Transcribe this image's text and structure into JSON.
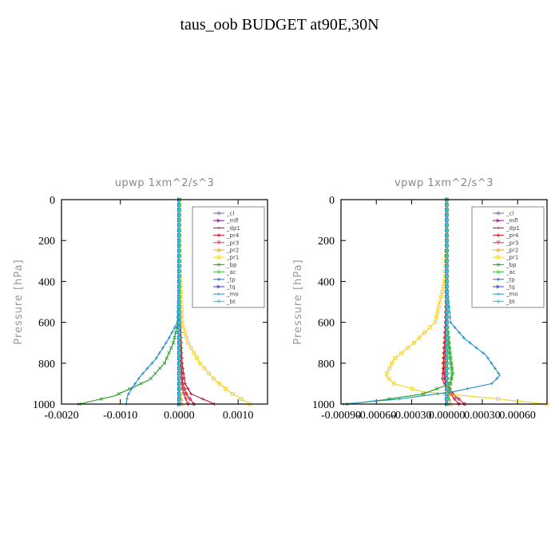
{
  "title": "taus_oob  BUDGET at90E,30N",
  "chart_data": [
    {
      "type": "line",
      "title": "upwp   1xm^2/s^3",
      "ylabel": "Pressure [hPa]",
      "xlim": [
        -0.002,
        0.0015
      ],
      "ylim": [
        0,
        1000
      ],
      "y_inverted": true,
      "xticks": [
        "-0.0020",
        "-0.0010",
        "0.0000",
        "0.0010"
      ],
      "xtick_values": [
        -0.002,
        -0.001,
        0.0,
        0.001
      ],
      "yticks": [
        "0",
        "200",
        "400",
        "600",
        "800",
        "1000"
      ],
      "ytick_values": [
        0,
        200,
        400,
        600,
        800,
        1000
      ],
      "legend_position": "top-right",
      "series": [
        {
          "name": "_cl",
          "color": "#7f5f9f",
          "marker": "o",
          "x": [
            0,
            0,
            0,
            0,
            0,
            0
          ],
          "y": [
            0,
            200,
            400,
            600,
            800,
            1000
          ]
        },
        {
          "name": "_mfl",
          "color": "#8b1a8b",
          "marker": ">",
          "x": [
            0,
            0,
            0,
            0,
            0,
            0,
            0,
            0
          ],
          "y": [
            0,
            200,
            400,
            600,
            800,
            900,
            950,
            1000
          ]
        },
        {
          "name": "_dp1",
          "color": "#b0103a",
          "marker": "+",
          "x": [
            0,
            0,
            0,
            2e-05,
            5e-05,
            0.0001,
            0.0002,
            0.0006
          ],
          "y": [
            0,
            200,
            400,
            600,
            800,
            900,
            950,
            1000
          ]
        },
        {
          "name": "_pr4",
          "color": "#d0182a",
          "marker": "d",
          "x": [
            0,
            0,
            0,
            1e-05,
            3e-05,
            6e-05,
            0.00012,
            0.00025
          ],
          "y": [
            0,
            200,
            400,
            600,
            800,
            900,
            950,
            1000
          ]
        },
        {
          "name": "_pr3",
          "color": "#e03050",
          "marker": "v",
          "x": [
            0,
            0,
            0,
            0,
            2e-05,
            4e-05,
            8e-05,
            0.00015
          ],
          "y": [
            0,
            200,
            400,
            600,
            800,
            900,
            950,
            1000
          ]
        },
        {
          "name": "_pr2",
          "color": "#f0a020",
          "marker": "^",
          "x": [
            0,
            0,
            0,
            0,
            0,
            1e-05,
            2e-05,
            4e-05
          ],
          "y": [
            0,
            200,
            400,
            600,
            800,
            900,
            950,
            1000
          ]
        },
        {
          "name": "_pr1",
          "color": "#f0d020",
          "marker": "s",
          "x": [
            0,
            0,
            2e-05,
            5e-05,
            0.00015,
            0.00035,
            0.0006,
            0.00085,
            0.0012
          ],
          "y": [
            0,
            200,
            400,
            600,
            700,
            800,
            880,
            940,
            1000
          ]
        },
        {
          "name": "_bp",
          "color": "#20a020",
          "marker": "x",
          "x": [
            0,
            0,
            0,
            -2e-05,
            -0.0001,
            -0.00025,
            -0.0005,
            -0.0011,
            -0.0017
          ],
          "y": [
            0,
            200,
            400,
            600,
            700,
            800,
            880,
            960,
            1000
          ]
        },
        {
          "name": "_ac",
          "color": "#40c040",
          "marker": "o",
          "x": [
            0,
            0,
            0,
            0,
            0,
            0,
            0,
            0
          ],
          "y": [
            0,
            200,
            400,
            600,
            800,
            900,
            950,
            1000
          ]
        },
        {
          "name": "_tp",
          "color": "#3070d0",
          "marker": "*",
          "x": [
            0,
            0,
            0,
            0,
            0,
            0,
            0,
            0
          ],
          "y": [
            0,
            200,
            400,
            600,
            800,
            900,
            950,
            1000
          ]
        },
        {
          "name": "_tq",
          "color": "#4040c0",
          "marker": ">",
          "x": [
            0,
            0,
            0,
            0,
            0,
            0,
            0,
            0
          ],
          "y": [
            0,
            200,
            400,
            600,
            800,
            900,
            950,
            1000
          ]
        },
        {
          "name": "_mo",
          "color": "#2090c0",
          "marker": "+",
          "x": [
            0,
            0,
            0,
            -3e-05,
            -0.00018,
            -0.0004,
            -0.00065,
            -0.0008,
            -0.00088,
            -0.0009
          ],
          "y": [
            0,
            200,
            400,
            600,
            680,
            780,
            860,
            920,
            960,
            1000
          ]
        },
        {
          "name": "_bt",
          "color": "#20d0d0",
          "marker": "D",
          "x": [
            0,
            0,
            0,
            0,
            0,
            0
          ],
          "y": [
            0,
            200,
            400,
            600,
            800,
            1000
          ]
        }
      ]
    },
    {
      "type": "line",
      "title": "vpwp   1xm^2/s^3",
      "ylabel": "Pressure [hPa]",
      "xlim": [
        -0.0009,
        0.00085
      ],
      "ylim": [
        0,
        1000
      ],
      "y_inverted": true,
      "xticks": [
        "-0.00090",
        "-0.00060",
        "-0.00030",
        "0.00000",
        "0.00030",
        "0.00060"
      ],
      "xtick_values": [
        -0.0009,
        -0.0006,
        -0.0003,
        0.0,
        0.0003,
        0.0006
      ],
      "yticks": [
        "0",
        "200",
        "400",
        "600",
        "800",
        "1000"
      ],
      "ytick_values": [
        0,
        200,
        400,
        600,
        800,
        1000
      ],
      "legend_position": "top-right",
      "series": [
        {
          "name": "_cl",
          "color": "#7f5f9f",
          "marker": "o",
          "x": [
            0,
            0,
            0,
            0,
            0,
            0
          ],
          "y": [
            0,
            200,
            400,
            600,
            800,
            1000
          ]
        },
        {
          "name": "_mfl",
          "color": "#8b1a8b",
          "marker": ">",
          "x": [
            0,
            0,
            0,
            0,
            0,
            0,
            0,
            0
          ],
          "y": [
            0,
            200,
            400,
            600,
            800,
            900,
            950,
            1000
          ]
        },
        {
          "name": "_dp1",
          "color": "#b0103a",
          "marker": "+",
          "x": [
            0,
            0,
            0,
            -1e-05,
            -3e-05,
            -4e-05,
            3e-05,
            0.0001
          ],
          "y": [
            0,
            200,
            400,
            600,
            800,
            880,
            950,
            1000
          ]
        },
        {
          "name": "_pr4",
          "color": "#d0182a",
          "marker": "d",
          "x": [
            0,
            0,
            0,
            -1e-05,
            -3e-05,
            -2e-05,
            5e-05,
            0.00015
          ],
          "y": [
            0,
            200,
            400,
            600,
            800,
            880,
            950,
            1000
          ]
        },
        {
          "name": "_pr3",
          "color": "#e03050",
          "marker": "v",
          "x": [
            0,
            0,
            0,
            0,
            -2e-05,
            -1e-05,
            3e-05,
            0.0001
          ],
          "y": [
            0,
            200,
            400,
            600,
            800,
            880,
            950,
            1000
          ]
        },
        {
          "name": "_pr2",
          "color": "#f0a020",
          "marker": "^",
          "x": [
            0,
            0,
            0,
            0,
            -1e-05,
            0,
            1e-05,
            3e-05
          ],
          "y": [
            0,
            200,
            400,
            600,
            800,
            880,
            950,
            1000
          ]
        },
        {
          "name": "_pr1",
          "color": "#f0d020",
          "marker": "s",
          "x": [
            0,
            0,
            -2e-05,
            -0.0001,
            -0.00028,
            -0.00045,
            -0.00052,
            -0.00045,
            -0.0002,
            0.00035,
            0.00085
          ],
          "y": [
            0,
            200,
            400,
            600,
            700,
            780,
            860,
            900,
            940,
            970,
            1000
          ]
        },
        {
          "name": "_bp",
          "color": "#20a020",
          "marker": "x",
          "x": [
            0,
            0,
            0,
            0,
            3e-05,
            5e-05,
            3e-05,
            -0.0002,
            -0.00055,
            -0.00085
          ],
          "y": [
            0,
            200,
            400,
            600,
            760,
            850,
            900,
            950,
            980,
            1000
          ]
        },
        {
          "name": "_ac",
          "color": "#40c040",
          "marker": "o",
          "x": [
            0,
            0,
            0,
            0,
            2e-05,
            4e-05,
            2e-05,
            0
          ],
          "y": [
            0,
            200,
            400,
            600,
            760,
            850,
            930,
            1000
          ]
        },
        {
          "name": "_tp",
          "color": "#3070d0",
          "marker": "*",
          "x": [
            0,
            0,
            0,
            0,
            0,
            0,
            0,
            0
          ],
          "y": [
            0,
            200,
            400,
            600,
            800,
            900,
            950,
            1000
          ]
        },
        {
          "name": "_tq",
          "color": "#4040c0",
          "marker": ">",
          "x": [
            0,
            0,
            0,
            0,
            0,
            0,
            0,
            0
          ],
          "y": [
            0,
            200,
            400,
            600,
            800,
            900,
            950,
            1000
          ]
        },
        {
          "name": "_mo",
          "color": "#2090c0",
          "marker": "+",
          "x": [
            0,
            0,
            0,
            3e-05,
            0.00015,
            0.00033,
            0.00045,
            0.00038,
            5e-05,
            -0.0004,
            -0.00088
          ],
          "y": [
            0,
            200,
            400,
            600,
            680,
            760,
            860,
            900,
            940,
            975,
            1000
          ]
        },
        {
          "name": "_bt",
          "color": "#20d0d0",
          "marker": "D",
          "x": [
            0,
            0,
            0,
            0,
            0,
            0
          ],
          "y": [
            0,
            200,
            400,
            600,
            800,
            1000
          ]
        }
      ]
    }
  ]
}
